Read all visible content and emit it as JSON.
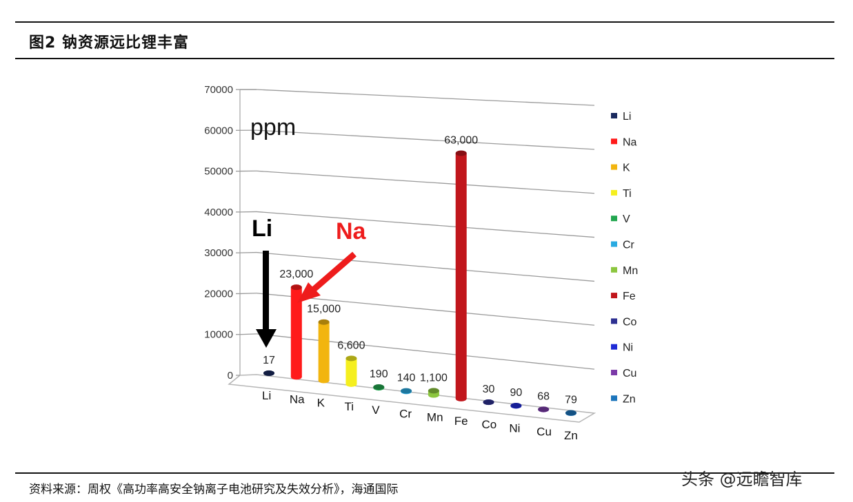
{
  "figure": {
    "title": "图2  钠资源远比锂丰富",
    "source": "资料来源：周权《高功率高安全钠离子电池研究及失效分析》，海通国际",
    "watermark": "头条 @远瞻智库"
  },
  "chart_data": {
    "type": "bar",
    "unit_label": "ppm",
    "categories": [
      "Li",
      "Na",
      "K",
      "Ti",
      "V",
      "Cr",
      "Mn",
      "Fe",
      "Co",
      "Ni",
      "Cu",
      "Zn"
    ],
    "values": [
      17,
      23000,
      15000,
      6600,
      190,
      140,
      1100,
      63000,
      30,
      90,
      68,
      79
    ],
    "data_labels": [
      "17",
      "23,000",
      "15,000",
      "6,600",
      "190",
      "140",
      "1,100",
      "63,000",
      "30",
      "90",
      "68",
      "79"
    ],
    "colors": [
      "#1a2a5e",
      "#ff1a1a",
      "#f2b50f",
      "#f5ef1f",
      "#22a64f",
      "#29aae1",
      "#8cc63f",
      "#c1161c",
      "#2e3192",
      "#1f2bd6",
      "#7b3aa8",
      "#1c75bc"
    ],
    "yticks": [
      0,
      10000,
      20000,
      30000,
      40000,
      50000,
      60000,
      70000
    ],
    "ylim": [
      0,
      70000
    ],
    "legend_position": "right",
    "grid": true,
    "annotations": {
      "li": "Li",
      "na": "Na"
    }
  }
}
